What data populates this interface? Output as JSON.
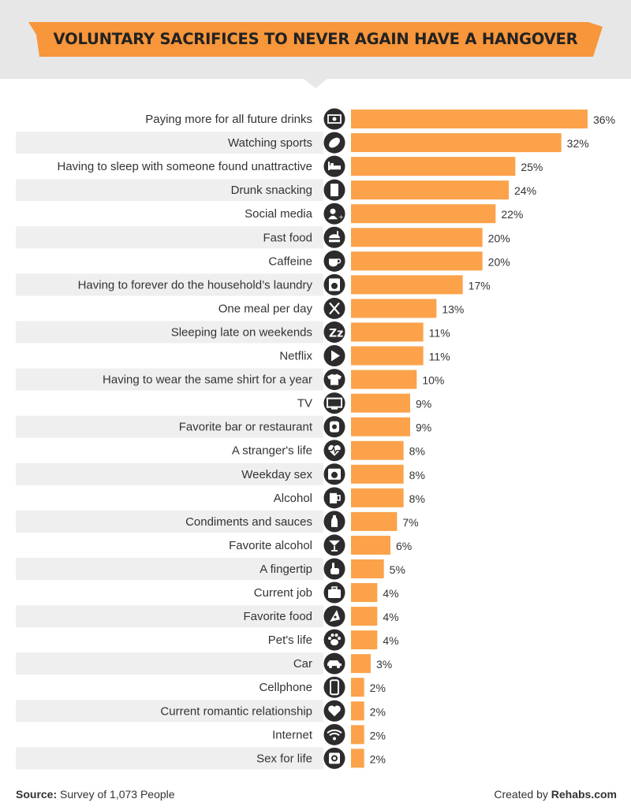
{
  "colors": {
    "accent": "#f7963a",
    "bar": "#fba24a",
    "stripe": "#efefef",
    "icon_bg": "#2c2c2c",
    "header_bg": "#e7e7e7"
  },
  "chart_data": {
    "type": "bar",
    "orientation": "horizontal",
    "title": "VOLUNTARY SACRIFICES TO NEVER AGAIN HAVE A HANGOVER",
    "categories": [
      "Paying more for all future drinks",
      "Watching sports",
      "Having to sleep with someone found unattractive",
      "Drunk snacking",
      "Social media",
      "Fast food",
      "Caffeine",
      "Having to forever do the household’s laundry",
      "One meal per day",
      "Sleeping late on weekends",
      "Netflix",
      "Having to wear the same shirt for a year",
      "TV",
      "Favorite bar or restaurant",
      "A stranger's life",
      "Weekday sex",
      "Alcohol",
      "Condiments and sauces",
      "Favorite alcohol",
      "A fingertip",
      "Current job",
      "Favorite food",
      "Pet's life",
      "Car",
      "Cellphone",
      "Current romantic relationship",
      "Internet",
      "Sex for life"
    ],
    "values": [
      36,
      32,
      25,
      24,
      22,
      20,
      20,
      17,
      13,
      11,
      11,
      10,
      9,
      9,
      8,
      8,
      8,
      7,
      6,
      5,
      4,
      4,
      4,
      3,
      2,
      2,
      2,
      2
    ],
    "value_labels": [
      "36%",
      "32%",
      "25%",
      "24%",
      "22%",
      "20%",
      "20%",
      "17%",
      "13%",
      "11%",
      "11%",
      "10%",
      "9%",
      "9%",
      "8%",
      "8%",
      "8%",
      "7%",
      "6%",
      "5%",
      "4%",
      "4%",
      "4%",
      "3%",
      "2%",
      "2%",
      "2%",
      "2%"
    ],
    "icons": [
      "money-icon",
      "football-icon",
      "bed-icon",
      "snack-bag-icon",
      "user-add-icon",
      "fast-food-icon",
      "coffee-cup-icon",
      "washing-machine-icon",
      "fork-knife-icon",
      "sleep-zzz-icon",
      "play-icon",
      "t-shirt-icon",
      "tv-icon",
      "restaurant-icon",
      "heartbeat-icon",
      "calendar-clock-icon",
      "beer-mug-icon",
      "salt-shaker-icon",
      "cocktail-icon",
      "pointing-hand-icon",
      "briefcase-icon",
      "pizza-icon",
      "paw-icon",
      "car-icon",
      "cellphone-icon",
      "heart-icon",
      "wifi-icon",
      "condom-icon"
    ],
    "xlim": [
      0,
      36
    ],
    "grid": false,
    "legend": "none"
  },
  "footer": {
    "source_label": "Source:",
    "source_text": "Survey of 1,073 People",
    "credit_text": "Created by",
    "credit_brand": "Rehabs.com"
  }
}
